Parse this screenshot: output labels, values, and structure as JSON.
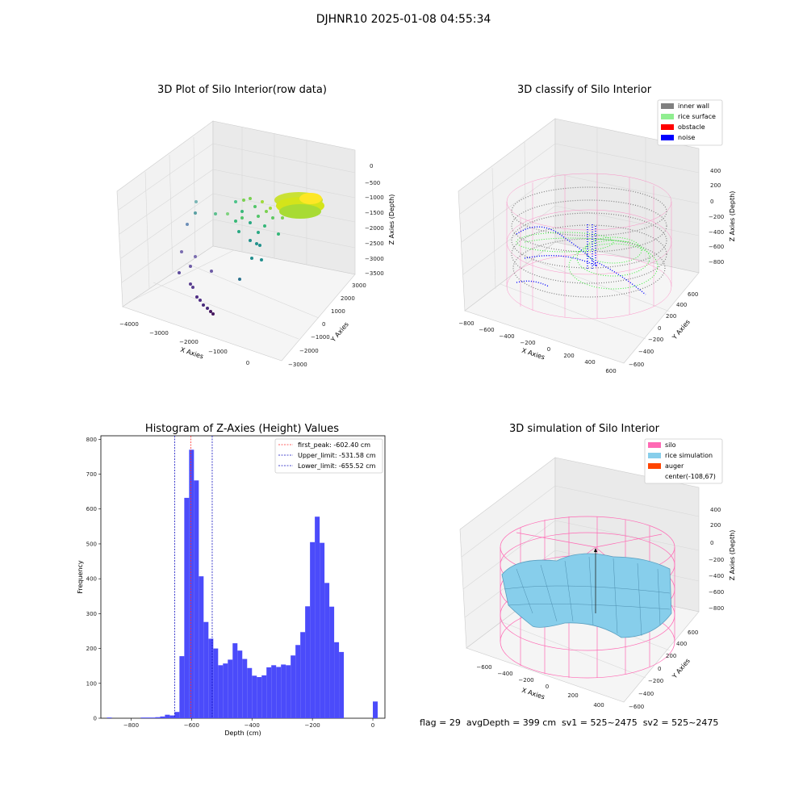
{
  "figure": {
    "suptitle": "DJHNR10 2025-01-08 04:55:34",
    "footer": "flag = 29  avgDepth = 399 cm  sv1 = 525~2475  sv2 = 525~2475"
  },
  "colors": {
    "hist_bar": "#4b4bfa",
    "first_peak": "#ff3030",
    "limits": "#1010c0",
    "inner_wall": "#808080",
    "rice_surface": "#90ee90",
    "obstacle": "#ff0000",
    "noise": "#0000ff",
    "silo": "#ff69b4",
    "rice_simulation": "#87ceeb",
    "auger": "#ff4500",
    "pane": "#f2f2f2",
    "grid": "#d8d8d8"
  },
  "chart_data": [
    {
      "type": "scatter",
      "title": "3D Plot of Silo Interior(row data)",
      "xlabel": "X Axies",
      "ylabel": "Y Axies",
      "zlabel": "Z Axies (Depth)",
      "x_ticks": [
        "−4000",
        "−3000",
        "−2000",
        "−1000",
        "0"
      ],
      "y_ticks": [
        "−3000",
        "−2000",
        "−1000",
        "0",
        "1000",
        "2000",
        "3000"
      ],
      "z_ticks": [
        "0",
        "−500",
        "−1000",
        "−1500",
        "−2000",
        "−2500",
        "−3000",
        "−3500"
      ],
      "colormap": "viridis",
      "description_points": "dense cluster near (0,0,-1000) plus sparse trail of points toward (-4000,-3000,-3500)"
    },
    {
      "type": "scatter",
      "title": "3D classify of Silo Interior",
      "xlabel": "X Axies",
      "ylabel": "Y Axies",
      "zlabel": "Z Axies (Depth)",
      "x_ticks": [
        "−800",
        "−600",
        "−400",
        "−200",
        "0",
        "200",
        "400",
        "600"
      ],
      "y_ticks": [
        "−600",
        "−400",
        "−200",
        "0",
        "200",
        "400",
        "600"
      ],
      "z_ticks": [
        "400",
        "200",
        "0",
        "−200",
        "−400",
        "−600",
        "−800"
      ],
      "legend": [
        "inner wall",
        "rice surface",
        "obstacle",
        "noise"
      ],
      "legend_loc": "upper right"
    },
    {
      "type": "bar",
      "title": "Histogram of Z-Axies (Height) Values",
      "xlabel": "Depth (cm)",
      "ylabel": "Frequency",
      "xlim": [
        -900,
        40
      ],
      "ylim": [
        0,
        810
      ],
      "x_ticks": [
        -800,
        -600,
        -400,
        -200,
        0
      ],
      "y_ticks": [
        0,
        100,
        200,
        300,
        400,
        500,
        600,
        700,
        800
      ],
      "bin_width": 16,
      "bins": [
        {
          "x": -880,
          "count": 2
        },
        {
          "x": -864,
          "count": 0
        },
        {
          "x": -848,
          "count": 0
        },
        {
          "x": -832,
          "count": 0
        },
        {
          "x": -816,
          "count": 0
        },
        {
          "x": -800,
          "count": 0
        },
        {
          "x": -784,
          "count": 0
        },
        {
          "x": -768,
          "count": 2
        },
        {
          "x": -752,
          "count": 2
        },
        {
          "x": -736,
          "count": 2
        },
        {
          "x": -720,
          "count": 3
        },
        {
          "x": -704,
          "count": 5
        },
        {
          "x": -688,
          "count": 10
        },
        {
          "x": -672,
          "count": 8
        },
        {
          "x": -656,
          "count": 18
        },
        {
          "x": -640,
          "count": 178
        },
        {
          "x": -624,
          "count": 632
        },
        {
          "x": -608,
          "count": 770
        },
        {
          "x": -592,
          "count": 682
        },
        {
          "x": -576,
          "count": 407
        },
        {
          "x": -560,
          "count": 276
        },
        {
          "x": -544,
          "count": 228
        },
        {
          "x": -528,
          "count": 200
        },
        {
          "x": -512,
          "count": 152
        },
        {
          "x": -496,
          "count": 157
        },
        {
          "x": -480,
          "count": 168
        },
        {
          "x": -464,
          "count": 215
        },
        {
          "x": -448,
          "count": 194
        },
        {
          "x": -432,
          "count": 170
        },
        {
          "x": -416,
          "count": 144
        },
        {
          "x": -400,
          "count": 122
        },
        {
          "x": -384,
          "count": 118
        },
        {
          "x": -368,
          "count": 123
        },
        {
          "x": -352,
          "count": 146
        },
        {
          "x": -336,
          "count": 152
        },
        {
          "x": -320,
          "count": 147
        },
        {
          "x": -304,
          "count": 154
        },
        {
          "x": -288,
          "count": 152
        },
        {
          "x": -272,
          "count": 180
        },
        {
          "x": -256,
          "count": 210
        },
        {
          "x": -240,
          "count": 247
        },
        {
          "x": -224,
          "count": 321
        },
        {
          "x": -208,
          "count": 505
        },
        {
          "x": -192,
          "count": 578
        },
        {
          "x": -176,
          "count": 503
        },
        {
          "x": -160,
          "count": 388
        },
        {
          "x": -144,
          "count": 320
        },
        {
          "x": -128,
          "count": 218
        },
        {
          "x": -112,
          "count": 190
        },
        {
          "x": -96,
          "count": 0
        },
        {
          "x": -80,
          "count": 0
        },
        {
          "x": -64,
          "count": 0
        },
        {
          "x": -48,
          "count": 0
        },
        {
          "x": -32,
          "count": 0
        },
        {
          "x": -16,
          "count": 0
        },
        {
          "x": 0,
          "count": 48
        }
      ],
      "vlines": [
        {
          "label": "first_peak: -602.40 cm",
          "x": -602.4,
          "color_key": "first_peak"
        },
        {
          "label": "Upper_limit: -531.58 cm",
          "x": -531.58,
          "color_key": "limits"
        },
        {
          "label": "Lower_limit: -655.52 cm",
          "x": -655.52,
          "color_key": "limits"
        }
      ],
      "legend_loc": "upper right"
    },
    {
      "type": "surface",
      "title": "3D simulation of Silo Interior",
      "xlabel": "X Axies",
      "ylabel": "Y Axies",
      "zlabel": "Z Axies (Depth)",
      "x_ticks": [
        "−600",
        "−400",
        "−200",
        "0",
        "200",
        "400"
      ],
      "y_ticks": [
        "−600",
        "−400",
        "−200",
        "0",
        "200",
        "400",
        "600"
      ],
      "z_ticks": [
        "400",
        "200",
        "0",
        "−200",
        "−400",
        "−600",
        "−800"
      ],
      "legend": [
        "silo",
        "rice simulation",
        "auger",
        "center(-108,67)"
      ],
      "legend_loc": "upper right"
    }
  ]
}
